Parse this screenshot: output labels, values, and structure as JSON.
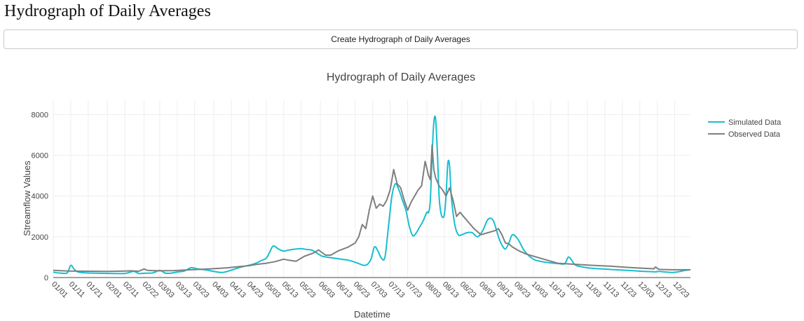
{
  "header": {
    "title": "Hydrograph of Daily Averages",
    "button_label": "Create Hydrograph of Daily Averages"
  },
  "chart_data": {
    "type": "line",
    "title": "Hydrograph of Daily Averages",
    "xlabel": "Datetime",
    "ylabel": "Streamflow Values",
    "ylim": [
      0,
      8700
    ],
    "yticks": [
      0,
      2000,
      4000,
      6000,
      8000
    ],
    "grid": true,
    "legend_position": "top-right",
    "x_ticks": [
      "01/01",
      "01/11",
      "01/21",
      "02/01",
      "02/11",
      "02/22",
      "03/03",
      "03/13",
      "03/23",
      "04/03",
      "04/13",
      "04/23",
      "05/03",
      "05/13",
      "05/23",
      "06/03",
      "06/13",
      "06/23",
      "07/03",
      "07/13",
      "07/23",
      "08/03",
      "08/13",
      "08/23",
      "09/03",
      "09/13",
      "09/23",
      "10/03",
      "10/13",
      "10/23",
      "11/03",
      "11/13",
      "11/23",
      "12/03",
      "12/13",
      "12/23"
    ],
    "x_tick_day_of_year": [
      1,
      11,
      21,
      32,
      42,
      53,
      62,
      72,
      82,
      93,
      103,
      113,
      123,
      133,
      143,
      154,
      164,
      174,
      184,
      194,
      204,
      215,
      225,
      235,
      246,
      256,
      266,
      276,
      286,
      296,
      307,
      317,
      327,
      337,
      347,
      357
    ],
    "x_range_day_of_year": [
      1,
      366
    ],
    "series": [
      {
        "name": "Simulated Data",
        "color": "#17becf",
        "x_day_of_year": [
          1,
          5,
          9,
          11,
          13,
          15,
          18,
          22,
          28,
          35,
          42,
          47,
          50,
          53,
          58,
          62,
          65,
          68,
          72,
          76,
          80,
          84,
          88,
          93,
          98,
          103,
          108,
          114,
          117,
          120,
          123,
          125,
          127,
          130,
          133,
          136,
          140,
          143,
          146,
          149,
          152,
          155,
          158,
          162,
          166,
          170,
          174,
          177,
          179,
          181,
          183,
          185,
          187,
          189,
          191,
          193,
          195,
          197,
          199,
          201,
          203,
          205,
          207,
          209,
          211,
          213,
          215,
          216,
          217,
          218,
          219,
          220,
          221,
          222,
          223,
          224,
          225,
          226,
          227,
          228,
          229,
          231,
          233,
          235,
          238,
          241,
          244,
          247,
          250,
          253,
          256,
          258,
          260,
          262,
          264,
          267,
          271,
          276,
          281,
          286,
          291,
          294,
          296,
          298,
          300,
          304,
          310,
          316,
          322,
          328,
          334,
          340,
          344,
          346,
          348,
          352,
          356,
          360,
          363,
          366
        ],
        "values": [
          260,
          220,
          230,
          600,
          400,
          280,
          240,
          220,
          210,
          200,
          200,
          300,
          200,
          210,
          230,
          350,
          220,
          210,
          270,
          320,
          480,
          420,
          380,
          300,
          250,
          360,
          500,
          620,
          700,
          830,
          950,
          1250,
          1550,
          1400,
          1300,
          1350,
          1400,
          1420,
          1380,
          1350,
          1200,
          1050,
          1000,
          950,
          900,
          850,
          750,
          650,
          600,
          650,
          900,
          1500,
          1300,
          950,
          1000,
          2500,
          4000,
          4600,
          4300,
          3800,
          3300,
          2500,
          2050,
          2200,
          2500,
          2800,
          3200,
          3200,
          3800,
          6000,
          7600,
          7800,
          6200,
          4000,
          3200,
          2950,
          3100,
          4000,
          5600,
          5500,
          4000,
          2600,
          2100,
          2100,
          2200,
          2200,
          2000,
          2300,
          2850,
          2800,
          2000,
          1600,
          1400,
          1700,
          2100,
          1900,
          1300,
          900,
          780,
          720,
          680,
          680,
          1000,
          850,
          620,
          520,
          450,
          420,
          390,
          360,
          330,
          300,
          290,
          280,
          300,
          270,
          250,
          300,
          350,
          380
        ]
      },
      {
        "name": "Observed Data",
        "color": "#7f7f7f",
        "x_day_of_year": [
          1,
          10,
          20,
          32,
          42,
          45,
          50,
          53,
          55,
          58,
          62,
          70,
          80,
          90,
          100,
          108,
          113,
          117,
          123,
          128,
          133,
          136,
          140,
          145,
          150,
          153,
          157,
          160,
          164,
          170,
          174,
          176,
          178,
          180,
          182,
          184,
          186,
          188,
          190,
          192,
          194,
          196,
          198,
          200,
          202,
          204,
          206,
          208,
          210,
          212,
          214,
          216,
          217,
          218,
          219,
          220,
          222,
          224,
          226,
          228,
          230,
          232,
          234,
          236,
          238,
          242,
          246,
          250,
          254,
          256,
          258,
          260,
          262,
          264,
          268,
          272,
          276,
          282,
          290,
          300,
          310,
          320,
          330,
          340,
          345,
          346,
          348,
          355,
          360,
          366
        ],
        "values": [
          350,
          320,
          310,
          300,
          320,
          330,
          310,
          420,
          350,
          340,
          330,
          340,
          380,
          420,
          470,
          540,
          580,
          640,
          700,
          780,
          900,
          850,
          800,
          1050,
          1200,
          1350,
          1100,
          1100,
          1300,
          1500,
          1700,
          2000,
          2600,
          2400,
          3300,
          4000,
          3400,
          3600,
          3500,
          3800,
          4300,
          5300,
          4600,
          4400,
          3800,
          3300,
          3700,
          4000,
          4300,
          4500,
          5700,
          5000,
          4800,
          6500,
          5300,
          4900,
          4500,
          4300,
          4000,
          4400,
          3800,
          3000,
          3200,
          3000,
          2800,
          2400,
          2100,
          2200,
          2300,
          2400,
          2100,
          1700,
          1650,
          1500,
          1300,
          1150,
          1050,
          900,
          700,
          650,
          600,
          560,
          500,
          450,
          430,
          520,
          400,
          380,
          380,
          380
        ]
      }
    ]
  }
}
